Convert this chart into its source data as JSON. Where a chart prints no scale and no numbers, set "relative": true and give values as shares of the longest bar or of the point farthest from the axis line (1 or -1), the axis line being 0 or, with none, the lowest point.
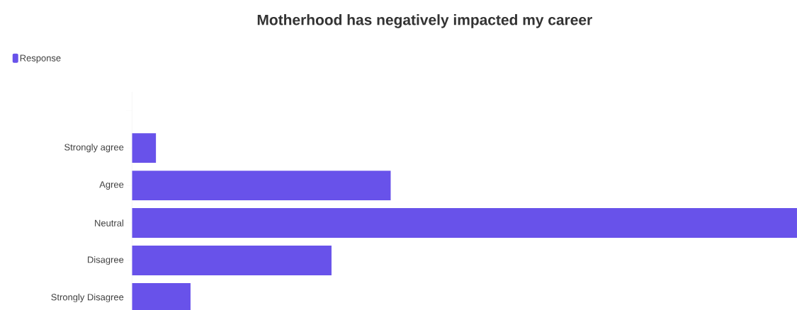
{
  "chart_data": {
    "type": "bar",
    "orientation": "horizontal",
    "relative": true,
    "title": "Motherhood has negatively impacted my career",
    "categories": [
      null,
      "Strongly agree",
      "Agree",
      "Neutral",
      "Disagree",
      "Strongly Disagree"
    ],
    "series": [
      {
        "name": "Response",
        "color": "#6852ea",
        "values": [
          null,
          0.036,
          0.389,
          1,
          0.3,
          0.088
        ]
      }
    ],
    "legend": "top left"
  }
}
